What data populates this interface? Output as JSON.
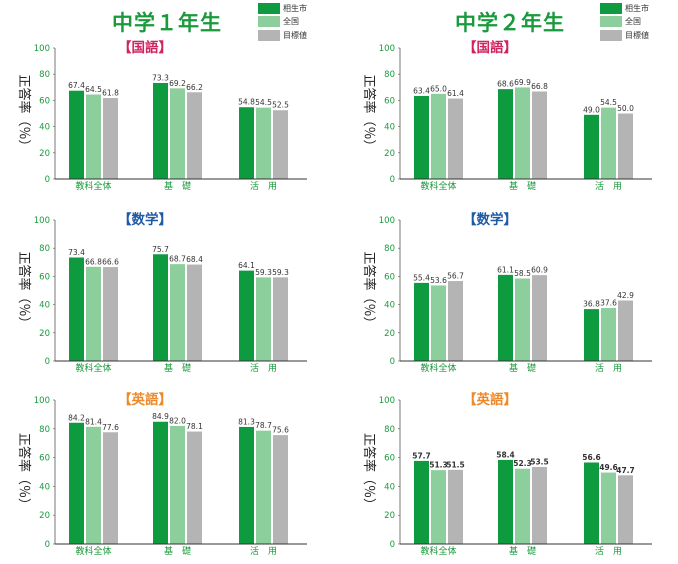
{
  "colors": {
    "city": "#0e9b3f",
    "national": "#8ccf9c",
    "target": "#b4b4b4",
    "axis_text": "#1a9a3c"
  },
  "grades": [
    {
      "title": "中学１年生",
      "legend": [
        {
          "label": "相生市",
          "color": "#0e9b3f"
        },
        {
          "label": "全国",
          "color": "#8ccf9c"
        },
        {
          "label": "目標値",
          "color": "#b4b4b4"
        }
      ]
    },
    {
      "title": "中学２年生",
      "legend": [
        {
          "label": "相生市",
          "color": "#0e9b3f"
        },
        {
          "label": "全国",
          "color": "#8ccf9c"
        },
        {
          "label": "目標値",
          "color": "#b4b4b4"
        }
      ]
    }
  ],
  "chart_data": [
    {
      "type": "bar",
      "grade": "中学１年生",
      "title": "【国語】",
      "title_color": "#d0245e",
      "ylabel": "正答率（％）",
      "ylim": [
        0,
        100
      ],
      "yticks": [
        0,
        20,
        40,
        60,
        80,
        100
      ],
      "categories": [
        "教科全体",
        "基　礎",
        "活　用"
      ],
      "value_bold": false,
      "series": [
        {
          "name": "相生市",
          "values": [
            67.4,
            73.3,
            54.8
          ]
        },
        {
          "name": "全国",
          "values": [
            64.5,
            69.2,
            54.5
          ]
        },
        {
          "name": "目標値",
          "values": [
            61.8,
            66.2,
            52.5
          ]
        }
      ]
    },
    {
      "type": "bar",
      "grade": "中学２年生",
      "title": "【国語】",
      "title_color": "#d0245e",
      "ylabel": "正答率（％）",
      "ylim": [
        0,
        100
      ],
      "yticks": [
        0,
        20,
        40,
        60,
        80,
        100
      ],
      "categories": [
        "教科全体",
        "基　礎",
        "活　用"
      ],
      "value_bold": false,
      "series": [
        {
          "name": "相生市",
          "values": [
            63.4,
            68.6,
            49.0
          ]
        },
        {
          "name": "全国",
          "values": [
            65.0,
            69.9,
            54.5
          ]
        },
        {
          "name": "目標値",
          "values": [
            61.4,
            66.8,
            50.0
          ]
        }
      ]
    },
    {
      "type": "bar",
      "grade": "中学１年生",
      "title": "【数学】",
      "title_color": "#1f5aa6",
      "ylabel": "正答率（％）",
      "ylim": [
        0,
        100
      ],
      "yticks": [
        0,
        20,
        40,
        60,
        80,
        100
      ],
      "categories": [
        "教科全体",
        "基　礎",
        "活　用"
      ],
      "value_bold": false,
      "series": [
        {
          "name": "相生市",
          "values": [
            73.4,
            75.7,
            64.1
          ]
        },
        {
          "name": "全国",
          "values": [
            66.8,
            68.7,
            59.3
          ]
        },
        {
          "name": "目標値",
          "values": [
            66.6,
            68.4,
            59.3
          ]
        }
      ]
    },
    {
      "type": "bar",
      "grade": "中学２年生",
      "title": "【数学】",
      "title_color": "#1f5aa6",
      "ylabel": "正答率（％）",
      "ylim": [
        0,
        100
      ],
      "yticks": [
        0,
        20,
        40,
        60,
        80,
        100
      ],
      "categories": [
        "教科全体",
        "基　礎",
        "活　用"
      ],
      "value_bold": false,
      "series": [
        {
          "name": "相生市",
          "values": [
            55.4,
            61.1,
            36.8
          ]
        },
        {
          "name": "全国",
          "values": [
            53.6,
            58.5,
            37.6
          ]
        },
        {
          "name": "目標値",
          "values": [
            56.7,
            60.9,
            42.9
          ]
        }
      ]
    },
    {
      "type": "bar",
      "grade": "中学１年生",
      "title": "【英語】",
      "title_color": "#ee8a2a",
      "ylabel": "正答率（％）",
      "ylim": [
        0,
        100
      ],
      "yticks": [
        0,
        20,
        40,
        60,
        80,
        100
      ],
      "categories": [
        "教科全体",
        "基　礎",
        "活　用"
      ],
      "value_bold": false,
      "series": [
        {
          "name": "相生市",
          "values": [
            84.2,
            84.9,
            81.3
          ]
        },
        {
          "name": "全国",
          "values": [
            81.4,
            82.0,
            78.7
          ]
        },
        {
          "name": "目標値",
          "values": [
            77.6,
            78.1,
            75.6
          ]
        }
      ]
    },
    {
      "type": "bar",
      "grade": "中学２年生",
      "title": "【英語】",
      "title_color": "#ee8a2a",
      "ylabel": "正答率（％）",
      "ylim": [
        0,
        100
      ],
      "yticks": [
        0,
        20,
        40,
        60,
        80,
        100
      ],
      "categories": [
        "教科全体",
        "基　礎",
        "活　用"
      ],
      "value_bold": true,
      "series": [
        {
          "name": "相生市",
          "values": [
            57.7,
            58.4,
            56.6
          ]
        },
        {
          "name": "全国",
          "values": [
            51.3,
            52.3,
            49.6
          ]
        },
        {
          "name": "目標値",
          "values": [
            51.5,
            53.5,
            47.7
          ]
        }
      ]
    }
  ]
}
